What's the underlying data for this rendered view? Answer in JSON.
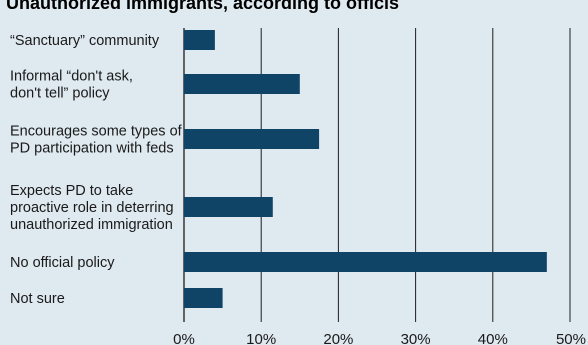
{
  "chart_data": {
    "type": "bar",
    "orientation": "horizontal",
    "title": "Unauthorized immigrants, according to officis",
    "categories": [
      [
        "“Sanctuary” community"
      ],
      [
        "Informal “don't ask,",
        "don't tell” policy"
      ],
      [
        "Encourages some types of",
        "PD participation with feds"
      ],
      [
        "Expects PD to take",
        "proactive role in deterring",
        "unauthorized immigration"
      ],
      [
        "No official policy"
      ],
      [
        "Not sure"
      ]
    ],
    "values": [
      4,
      15,
      17.5,
      11.5,
      47,
      5
    ],
    "xlim": [
      0,
      50
    ],
    "ticks": [
      "0%",
      "10%",
      "20%",
      "30%",
      "40%",
      "50%"
    ],
    "tick_values": [
      0,
      10,
      20,
      30,
      40,
      50
    ],
    "grid": true,
    "xlabel": "",
    "ylabel": "",
    "colors": {
      "bar": "#0f4466",
      "background": "#dfe9f0",
      "grid": "#1e1e1e"
    }
  }
}
